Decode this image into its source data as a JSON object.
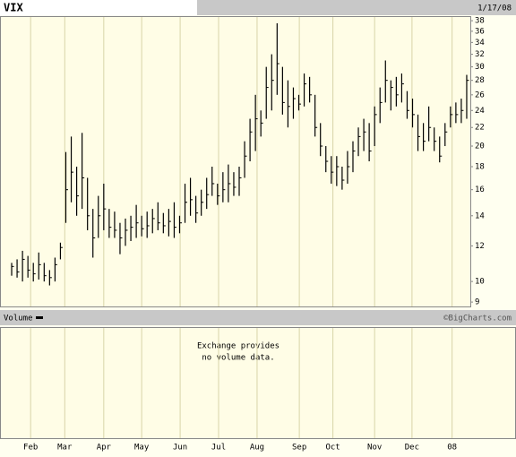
{
  "chart_data": {
    "type": "ohlc",
    "title": "VIX",
    "date": "1/17/08",
    "volume_label": "Volume",
    "credit": "©BigCharts.com",
    "volume_note": [
      "Exchange provides",
      "no volume data."
    ],
    "series": {
      "color": "#000000",
      "low": [
        10.3,
        10.2,
        10.0,
        10.2,
        10.0,
        10.1,
        10.0,
        9.8,
        10.0,
        11.2,
        13.5,
        15.0,
        14.0,
        14.5,
        13.0,
        11.3,
        12.5,
        13.0,
        12.5,
        12.5,
        11.5,
        12.0,
        12.3,
        12.5,
        12.6,
        12.5,
        12.8,
        13.0,
        12.8,
        12.6,
        12.5,
        12.8,
        13.5,
        14.0,
        13.5,
        14.0,
        14.5,
        15.5,
        14.8,
        15.0,
        15.0,
        15.5,
        15.5,
        17.0,
        18.5,
        19.5,
        21.0,
        23.0,
        24.0,
        26.0,
        23.5,
        22.0,
        23.0,
        24.0,
        24.5,
        25.0,
        21.0,
        19.0,
        17.5,
        16.5,
        16.3,
        16.0,
        16.5,
        17.5,
        19.0,
        19.5,
        18.5,
        20.0,
        22.5,
        25.0,
        24.0,
        24.5,
        25.0,
        23.0,
        22.0,
        19.5,
        19.5,
        20.5,
        19.5,
        18.4,
        20.0,
        22.0,
        22.5,
        22.5,
        23.0
      ],
      "high": [
        11.0,
        11.2,
        11.7,
        11.4,
        11.0,
        11.6,
        11.0,
        10.6,
        11.3,
        12.2,
        19.4,
        21.0,
        18.0,
        21.4,
        17.0,
        14.5,
        15.5,
        16.5,
        14.5,
        14.3,
        13.5,
        13.8,
        14.0,
        14.8,
        14.0,
        14.3,
        14.5,
        15.0,
        14.2,
        14.5,
        15.0,
        14.0,
        16.5,
        17.0,
        15.5,
        16.0,
        17.0,
        18.0,
        16.5,
        17.5,
        18.2,
        17.5,
        18.0,
        20.5,
        23.0,
        26.0,
        24.0,
        30.0,
        32.0,
        37.5,
        30.0,
        28.0,
        27.0,
        26.0,
        29.0,
        28.5,
        26.0,
        22.5,
        20.0,
        19.0,
        19.0,
        18.0,
        19.5,
        20.5,
        22.0,
        23.0,
        22.5,
        24.5,
        27.0,
        31.0,
        28.0,
        28.5,
        29.0,
        26.5,
        25.5,
        23.5,
        22.5,
        24.5,
        22.0,
        21.0,
        22.5,
        24.5,
        25.0,
        25.5,
        28.8
      ],
      "close": [
        10.8,
        10.5,
        11.2,
        10.6,
        10.4,
        10.9,
        10.3,
        10.2,
        10.9,
        11.9,
        16.0,
        17.5,
        15.5,
        17.0,
        14.0,
        12.5,
        14.0,
        14.5,
        13.2,
        13.0,
        12.5,
        13.0,
        13.2,
        13.5,
        13.1,
        13.3,
        13.8,
        13.5,
        13.3,
        13.6,
        13.2,
        13.5,
        15.0,
        15.2,
        14.2,
        15.0,
        15.6,
        16.5,
        15.5,
        16.0,
        16.5,
        16.2,
        17.0,
        19.0,
        21.5,
        23.0,
        22.5,
        27.0,
        28.0,
        30.5,
        25.0,
        24.5,
        25.5,
        24.8,
        27.5,
        26.0,
        22.0,
        20.0,
        18.5,
        17.5,
        18.0,
        16.8,
        18.0,
        19.5,
        21.0,
        21.5,
        19.5,
        23.5,
        25.0,
        28.0,
        27.0,
        26.0,
        27.5,
        24.0,
        23.5,
        21.0,
        20.5,
        22.0,
        20.5,
        19.0,
        21.5,
        23.5,
        23.5,
        24.0,
        28.0
      ]
    },
    "xlim": [
      -0.5,
      84.5
    ],
    "xticks": [
      {
        "value": 3.5,
        "label": "Feb"
      },
      {
        "value": 9.8,
        "label": "Mar"
      },
      {
        "value": 17.0,
        "label": "Apr"
      },
      {
        "value": 24.0,
        "label": "May"
      },
      {
        "value": 31.1,
        "label": "Jun"
      },
      {
        "value": 38.2,
        "label": "Jul"
      },
      {
        "value": 45.3,
        "label": "Aug"
      },
      {
        "value": 53.1,
        "label": "Sep"
      },
      {
        "value": 59.3,
        "label": "Oct"
      },
      {
        "value": 67.0,
        "label": "Nov"
      },
      {
        "value": 73.9,
        "label": "Dec"
      },
      {
        "value": 81.3,
        "label": "08"
      }
    ],
    "ylim": [
      8.8,
      38.9
    ],
    "yticks": [
      9,
      10,
      12,
      14,
      16,
      18,
      20,
      22,
      24,
      26,
      28,
      30,
      32,
      34,
      36,
      38
    ],
    "log_scale": true,
    "grid": true
  }
}
